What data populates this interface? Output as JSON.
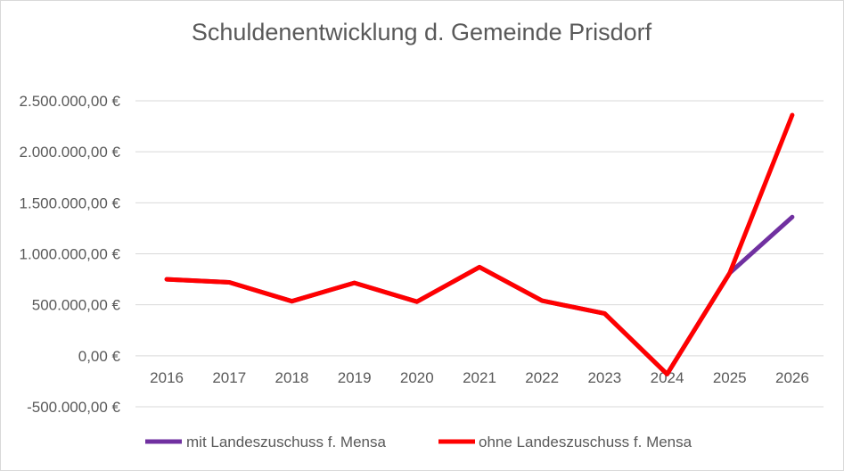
{
  "chart_data": {
    "type": "line",
    "title": "Schuldenentwicklung d. Gemeinde Prisdorf",
    "xlabel": "",
    "ylabel": "",
    "categories": [
      "2016",
      "2017",
      "2018",
      "2019",
      "2020",
      "2021",
      "2022",
      "2023",
      "2024",
      "2025",
      "2026"
    ],
    "ylim": [
      -500000,
      2500000
    ],
    "yticks": [
      2500000,
      2000000,
      1500000,
      1000000,
      500000,
      0,
      -500000
    ],
    "ytick_labels": [
      "2.500.000,00 €",
      "2.000.000,00 €",
      "1.500.000,00 €",
      "1.000.000,00 €",
      "500.000,00 €",
      "0,00 €",
      "-500.000,00 €"
    ],
    "grid": true,
    "legend_position": "bottom",
    "series": [
      {
        "name": "mit Landeszuschuss f. Mensa",
        "color": "#7030a0",
        "values": [
          750000,
          720000,
          535000,
          715000,
          530000,
          870000,
          540000,
          415000,
          -180000,
          810000,
          1360000
        ]
      },
      {
        "name": "ohne Landeszuschuss f. Mensa",
        "color": "#ff0000",
        "values": [
          750000,
          720000,
          535000,
          715000,
          530000,
          870000,
          540000,
          415000,
          -180000,
          810000,
          2360000
        ]
      }
    ]
  }
}
